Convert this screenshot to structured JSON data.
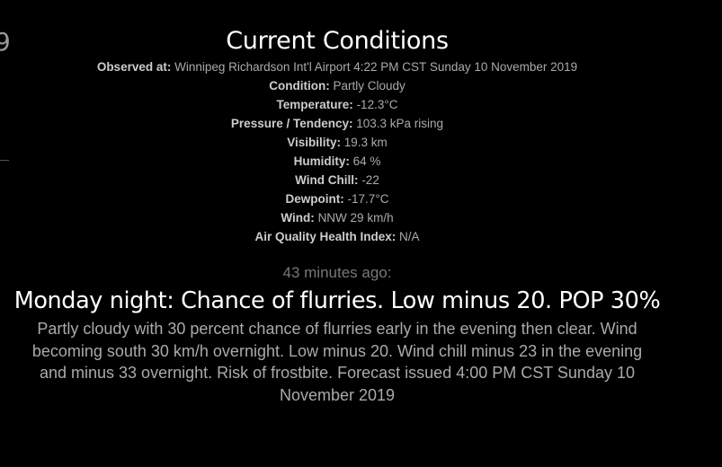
{
  "edge": {
    "fragment": "9"
  },
  "current": {
    "title": "Current Conditions",
    "rows": [
      {
        "label": "Observed at:",
        "value": "Winnipeg Richardson Int'l Airport 4:22 PM CST Sunday 10 November 2019"
      },
      {
        "label": "Condition:",
        "value": "Partly Cloudy"
      },
      {
        "label": "Temperature:",
        "value": "-12.3°C"
      },
      {
        "label": "Pressure / Tendency:",
        "value": "103.3 kPa rising"
      },
      {
        "label": "Visibility:",
        "value": "19.3 km"
      },
      {
        "label": "Humidity:",
        "value": "64 %"
      },
      {
        "label": "Wind Chill:",
        "value": "-22"
      },
      {
        "label": "Dewpoint:",
        "value": "-17.7°C"
      },
      {
        "label": "Wind:",
        "value": "NNW 29 km/h"
      },
      {
        "label": "Air Quality Health Index:",
        "value": "N/A"
      }
    ]
  },
  "forecast": {
    "time_ago": "43 minutes ago:",
    "title": "Monday night: Chance of flurries. Low minus 20. POP 30%",
    "text": "Partly cloudy with 30 percent chance of flurries early in the evening then clear. Wind becoming south 30 km/h overnight. Low minus 20. Wind chill minus 23 in the evening and minus 33 overnight. Risk of frostbite. Forecast issued 4:00 PM CST Sunday 10 November 2019"
  }
}
